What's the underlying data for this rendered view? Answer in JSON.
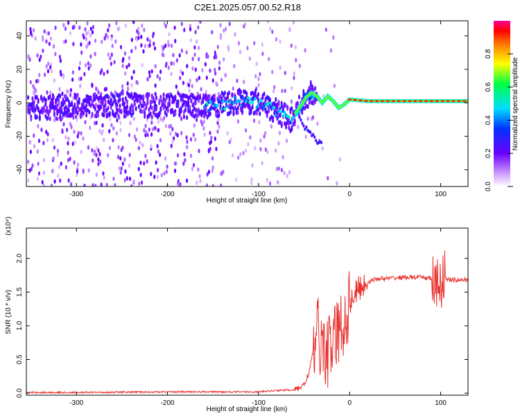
{
  "title": "C2E1.2025.057.00.52.R18",
  "chart_data": [
    {
      "type": "heatmap",
      "xlabel": "Height of straight line (km)",
      "ylabel": "Frequency (Hz)",
      "xlim": [
        -355,
        130
      ],
      "ylim": [
        -50,
        49
      ],
      "x_ticks": [
        -300,
        -200,
        -100,
        0,
        100
      ],
      "y_ticks": [
        -40,
        -20,
        0,
        20,
        40
      ],
      "colorbar": {
        "label": "Normalized spectral amplitude",
        "range": [
          0.0,
          1.0
        ],
        "ticks": [
          0.0,
          0.2,
          0.4,
          0.6,
          0.8
        ],
        "tick_labels": [
          "0.0",
          "0.2",
          "0.4",
          "0.6",
          "0.8"
        ]
      },
      "ridge": {
        "x": [
          -350,
          -300,
          -250,
          -200,
          -150,
          -120,
          -100,
          -80,
          -65,
          -55,
          -48,
          -42,
          -36,
          -30,
          -24,
          -18,
          -12,
          -6,
          0,
          20,
          60,
          100,
          130
        ],
        "y": [
          -3,
          -2,
          -1,
          -2,
          -2,
          1,
          0,
          -5,
          -10,
          -3,
          3,
          6,
          4,
          0,
          4,
          1,
          -3,
          -1,
          2,
          1,
          1,
          1,
          1
        ]
      },
      "branch": {
        "x": [
          -55,
          -48,
          -40,
          -35,
          -30
        ],
        "y": [
          -10,
          -15,
          -20,
          -23,
          -25
        ]
      }
    },
    {
      "type": "line",
      "xlabel": "Height of straight line (km)",
      "ylabel": "SNR (10 * v/v)",
      "y_multiplier": "(x10⁴)",
      "xlim": [
        -355,
        130
      ],
      "ylim": [
        -0.03,
        2.45
      ],
      "x_ticks": [
        -300,
        -200,
        -100,
        0,
        100
      ],
      "y_ticks": [
        0.0,
        0.5,
        1.0,
        1.5,
        2.0
      ],
      "color": "#e8322e",
      "series": [
        {
          "x": [
            -355,
            -300,
            -200,
            -150,
            -100,
            -80,
            -60,
            -50,
            -45,
            -40,
            -35,
            -30,
            -25,
            -20,
            -15,
            -10,
            -5,
            0,
            5,
            10,
            20,
            30,
            40,
            60,
            80,
            90,
            95,
            100,
            105,
            110,
            130
          ],
          "y": [
            0.01,
            0.01,
            0.02,
            0.02,
            0.02,
            0.04,
            0.05,
            0.12,
            0.3,
            0.6,
            0.9,
            0.7,
            0.6,
            0.7,
            0.85,
            0.95,
            1.1,
            1.35,
            1.45,
            1.55,
            1.65,
            1.7,
            1.7,
            1.72,
            1.72,
            1.7,
            1.5,
            1.7,
            1.7,
            1.68,
            1.68
          ]
        }
      ]
    }
  ]
}
